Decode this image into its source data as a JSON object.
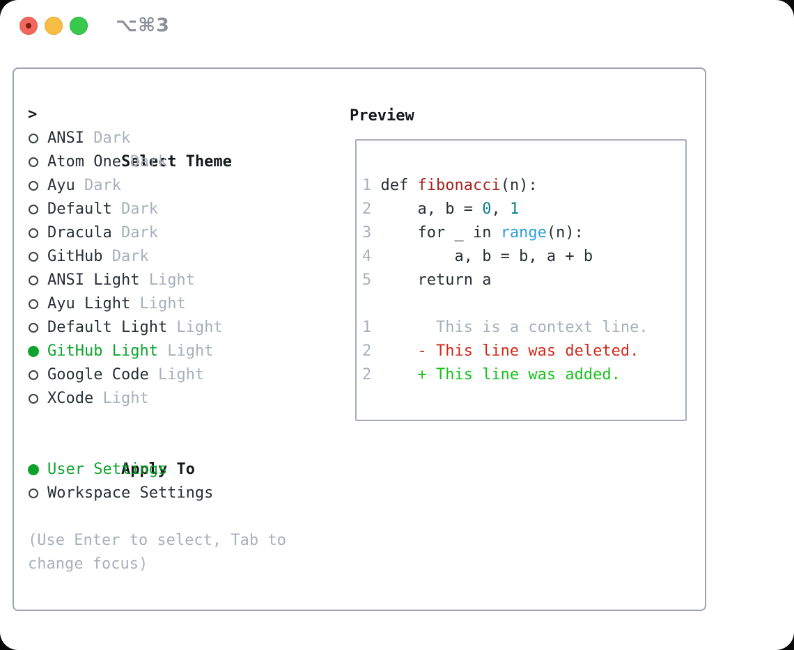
{
  "window": {
    "title": "⌥⌘3",
    "traffic_lights": [
      {
        "name": "close",
        "color": "#f2685e"
      },
      {
        "name": "minimize",
        "color": "#f7bd45"
      },
      {
        "name": "maximize",
        "color": "#38c84b"
      }
    ]
  },
  "left": {
    "header": "Select Theme",
    "themes": [
      {
        "name": "ANSI",
        "tag": "Dark",
        "selected": false
      },
      {
        "name": "Atom One",
        "tag": "Dark",
        "selected": false
      },
      {
        "name": "Ayu",
        "tag": "Dark",
        "selected": false
      },
      {
        "name": "Default",
        "tag": "Dark",
        "selected": false
      },
      {
        "name": "Dracula",
        "tag": "Dark",
        "selected": false
      },
      {
        "name": "GitHub",
        "tag": "Dark",
        "selected": false
      },
      {
        "name": "ANSI Light",
        "tag": "Light",
        "selected": false
      },
      {
        "name": "Ayu Light",
        "tag": "Light",
        "selected": false
      },
      {
        "name": "Default Light",
        "tag": "Light",
        "selected": false
      },
      {
        "name": "GitHub Light",
        "tag": "Light",
        "selected": true
      },
      {
        "name": "Google Code",
        "tag": "Light",
        "selected": false
      },
      {
        "name": "XCode",
        "tag": "Light",
        "selected": false
      }
    ],
    "apply_header": "Apply To",
    "apply_options": [
      {
        "name": "User Settings",
        "selected": true
      },
      {
        "name": "Workspace Settings",
        "selected": false
      }
    ],
    "help": "(Use Enter to select, Tab to change focus)"
  },
  "preview": {
    "title": "Preview",
    "code_lines": [
      {
        "num": "1",
        "segments": [
          {
            "text": "def ",
            "color": "dark"
          },
          {
            "text": "fibonacci",
            "color": "func"
          },
          {
            "text": "(n):",
            "color": "dark"
          }
        ]
      },
      {
        "num": "2",
        "segments": [
          {
            "text": "    a, b = ",
            "color": "dark"
          },
          {
            "text": "0",
            "color": "number"
          },
          {
            "text": ", ",
            "color": "dark"
          },
          {
            "text": "1",
            "color": "number"
          }
        ]
      },
      {
        "num": "3",
        "segments": [
          {
            "text": "    for _ in ",
            "color": "dark"
          },
          {
            "text": "range",
            "color": "builtin"
          },
          {
            "text": "(n):",
            "color": "dark"
          }
        ]
      },
      {
        "num": "4",
        "segments": [
          {
            "text": "        a, b = b, a + b",
            "color": "dark"
          }
        ]
      },
      {
        "num": "5",
        "segments": [
          {
            "text": "    return a",
            "color": "dark"
          }
        ]
      },
      {
        "num": "",
        "segments": []
      },
      {
        "num": "1",
        "segments": [
          {
            "text": "      This is a context line.",
            "color": "muted"
          }
        ]
      },
      {
        "num": "2",
        "segments": [
          {
            "text": "    - This line was deleted.",
            "color": "deleted"
          }
        ]
      },
      {
        "num": "2",
        "segments": [
          {
            "text": "    + This line was added.",
            "color": "added"
          }
        ]
      }
    ]
  },
  "colors": {
    "dark": "#282e36",
    "black": "#15181c",
    "muted": "#a8b0bb",
    "green": "#0da32c",
    "added": "#15c31c",
    "deleted": "#d12a1c",
    "func": "#a5231c",
    "number": "#0c7f87",
    "builtin": "#2ba0d8",
    "panel_border": "#99a2ae",
    "preview_border": "#a7aeb9",
    "title_gray": "#8b9199"
  }
}
